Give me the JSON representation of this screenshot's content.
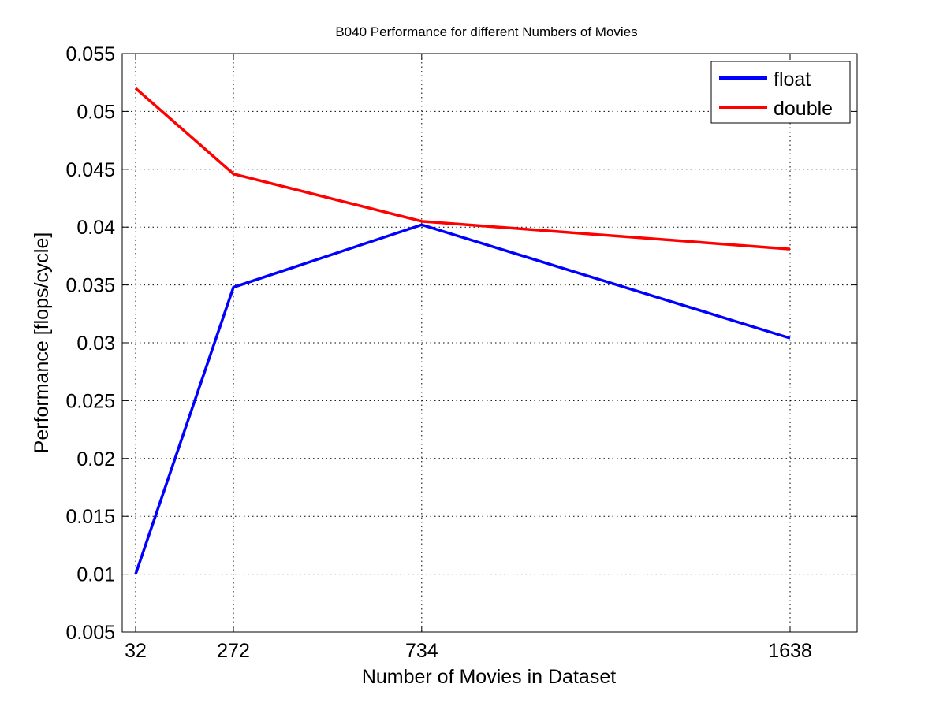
{
  "chart_data": {
    "type": "line",
    "title": "B040 Performance for different Numbers of Movies",
    "xlabel": "Number of Movies in Dataset",
    "ylabel": "Performance [flops/cycle]",
    "x": [
      32,
      272,
      734,
      1638
    ],
    "x_ticks": [
      32,
      272,
      734,
      1638
    ],
    "x_tick_labels": [
      "32",
      "272",
      "734",
      "1638"
    ],
    "xlim": [
      0,
      1800
    ],
    "ylim": [
      0.005,
      0.055
    ],
    "y_ticks": [
      0.005,
      0.01,
      0.015,
      0.02,
      0.025,
      0.03,
      0.035,
      0.04,
      0.045,
      0.05,
      0.055
    ],
    "y_tick_labels": [
      "0.005",
      "0.01",
      "0.015",
      "0.02",
      "0.025",
      "0.03",
      "0.035",
      "0.04",
      "0.045",
      "0.05",
      "0.055"
    ],
    "grid": true,
    "legend_position": "top-right",
    "series": [
      {
        "name": "float",
        "color": "#0000ff",
        "values": [
          0.01,
          0.0348,
          0.0402,
          0.0304
        ]
      },
      {
        "name": "double",
        "color": "#ff0000",
        "values": [
          0.052,
          0.0446,
          0.0405,
          0.0381
        ]
      }
    ]
  }
}
